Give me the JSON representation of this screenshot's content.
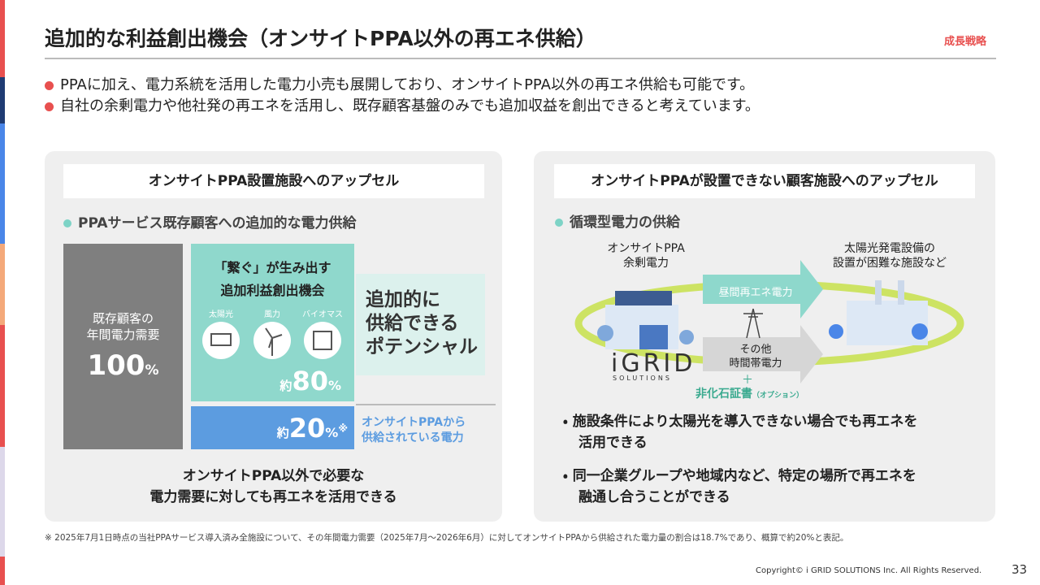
{
  "header": {
    "title": "追加的な利益創出機会（オンサイトPPA以外の再エネ供給）",
    "tag": "成長戦略"
  },
  "bullets": [
    "PPAに加え、電力系統を活用した電力小売も展開しており、オンサイトPPA以外の再エネ供給も可能です。",
    "自社の余剰電力や他社発の再エネを活用し、既存顧客基盤のみでも追加収益を創出できると考えています。"
  ],
  "left_panel": {
    "heading": "オンサイトPPA設置施設へのアップセル",
    "subheading": "PPAサービス既存顧客への追加的な電力供給",
    "base_block": {
      "label_lines": [
        "既存顧客の",
        "年間電力需要"
      ],
      "value": 100,
      "unit": "%"
    },
    "green_block": {
      "title_lines": [
        "「繋ぐ」が生み出す",
        "追加利益創出機会"
      ],
      "icons": [
        "太陽光",
        "風力",
        "バイオマス"
      ],
      "prefix": "約",
      "value": 80,
      "unit": "%"
    },
    "blue_block": {
      "prefix": "約",
      "value": 20,
      "unit": "%",
      "mark": "※",
      "caption_lines": [
        "オンサイトPPAから",
        "供給されている電力"
      ]
    },
    "potential_lines": [
      "追加的に",
      "供給できる",
      "ポテンシャル"
    ],
    "conclusion_lines": [
      "オンサイトPPA以外で必要な",
      "電力需要に対しても再エネを活用できる"
    ]
  },
  "right_panel": {
    "heading": "オンサイトPPAが設置できない顧客施設へのアップセル",
    "subheading": "循環型電力の供給",
    "source_lines": [
      "オンサイトPPA",
      "余剰電力"
    ],
    "target_lines": [
      "太陽光発電設備の",
      "設置が困難な施設など"
    ],
    "arrow_day": "昼間再エネ電力",
    "arrow_other_lines": [
      "その他",
      "時間帯電力"
    ],
    "plus": "＋",
    "certificate": "非化石証書",
    "option": "（オプション）",
    "logo": "iGRID",
    "logo_sub": "SOLUTIONS",
    "bullets": [
      [
        "施設条件により太陽光を導入できない場合でも再エネを",
        "活用できる"
      ],
      [
        "同一企業グループや地域内など、特定の場所で再エネを",
        "融通し合うことができる"
      ]
    ]
  },
  "footnote": "※ 2025年7月1日時点の当社PPAサービス導入済み全施設について、その年間電力需要（2025年7月～2026年6月）に対してオンサイトPPAから供給された電力量の割合は18.7%であり、概算で約20%と表記。",
  "copyright": "Copyright© i GRID SOLUTIONS Inc. All Rights Reserved.",
  "page_number": "33"
}
